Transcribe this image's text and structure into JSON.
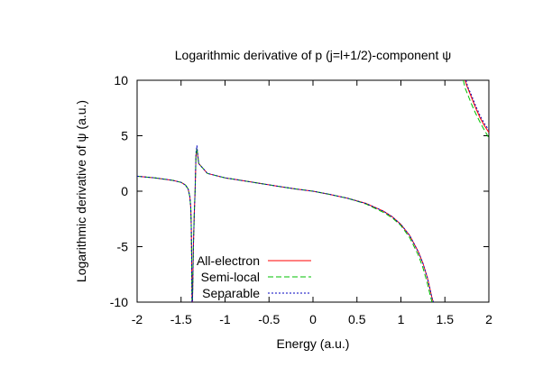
{
  "chart_data": {
    "type": "line",
    "title": "Logarithmic derivative of p (j=l+1/2)-component ψ",
    "xlabel": "Energy (a.u.)",
    "ylabel": "Logarithmic derivative of ψ (a.u.)",
    "xlim": [
      -2,
      2
    ],
    "ylim": [
      -10,
      10
    ],
    "xticks": [
      -2,
      -1.5,
      -1,
      -0.5,
      0,
      0.5,
      1,
      1.5,
      2
    ],
    "xtick_labels": [
      "-2",
      "-1.5",
      "-1",
      "-0.5",
      "0",
      "0.5",
      "1",
      "1.5",
      "2"
    ],
    "yticks": [
      -10,
      -5,
      0,
      5,
      10
    ],
    "ytick_labels": [
      "-10",
      "-5",
      "0",
      "5",
      "10"
    ],
    "grid": false,
    "legend_position": "bottom-left",
    "series": [
      {
        "name": "All-electron",
        "color": "#ff0000",
        "dash": "",
        "x": [
          -2.0,
          -1.8,
          -1.6,
          -1.5,
          -1.45,
          -1.42,
          -1.4,
          -1.39,
          -1.385,
          -1.38,
          -1.375,
          -1.37,
          -1.36,
          -1.35,
          -1.34,
          -1.33,
          -1.32,
          -1.3,
          -1.2,
          -1.0,
          -0.8,
          -0.6,
          -0.4,
          -0.2,
          0.0,
          0.2,
          0.4,
          0.6,
          0.8,
          0.9,
          1.0,
          1.1,
          1.2,
          1.25,
          1.3,
          1.33,
          1.35,
          1.36,
          1.37
        ],
        "y": [
          1.35,
          1.2,
          0.98,
          0.8,
          0.55,
          0.2,
          -0.5,
          -1.5,
          -3.0,
          -6.0,
          -10.0,
          -10.0,
          -5.0,
          -2.0,
          0.0,
          3.2,
          3.8,
          2.5,
          1.6,
          1.2,
          0.95,
          0.7,
          0.45,
          0.2,
          0.0,
          -0.3,
          -0.65,
          -1.1,
          -1.8,
          -2.3,
          -3.0,
          -4.0,
          -5.5,
          -6.5,
          -7.8,
          -8.8,
          -9.5,
          -9.8,
          -10.0
        ],
        "x2": [
          1.73,
          1.75,
          1.8,
          1.85,
          1.9,
          1.95,
          2.0
        ],
        "y2": [
          10.0,
          9.5,
          8.5,
          7.5,
          6.6,
          5.9,
          5.3
        ]
      },
      {
        "name": "Semi-local",
        "color": "#00c000",
        "dash": "6 3",
        "x": [
          -2.0,
          -1.8,
          -1.6,
          -1.5,
          -1.45,
          -1.42,
          -1.4,
          -1.39,
          -1.385,
          -1.38,
          -1.375,
          -1.37,
          -1.36,
          -1.35,
          -1.34,
          -1.33,
          -1.32,
          -1.3,
          -1.2,
          -1.0,
          -0.8,
          -0.6,
          -0.4,
          -0.2,
          0.0,
          0.2,
          0.4,
          0.6,
          0.8,
          0.9,
          1.0,
          1.1,
          1.2,
          1.25,
          1.3,
          1.33,
          1.35,
          1.36
        ],
        "y": [
          1.35,
          1.2,
          0.98,
          0.8,
          0.55,
          0.2,
          -0.5,
          -1.5,
          -3.0,
          -6.0,
          -10.0,
          -10.0,
          -5.0,
          -2.0,
          0.0,
          3.3,
          3.9,
          2.5,
          1.6,
          1.2,
          0.95,
          0.7,
          0.45,
          0.2,
          0.0,
          -0.3,
          -0.65,
          -1.15,
          -1.9,
          -2.4,
          -3.1,
          -4.2,
          -5.8,
          -6.9,
          -8.3,
          -9.3,
          -9.9,
          -10.0
        ],
        "x2": [
          1.71,
          1.73,
          1.8,
          1.85,
          1.9,
          1.95,
          2.0
        ],
        "y2": [
          10.0,
          9.3,
          7.9,
          7.0,
          6.2,
          5.5,
          4.8
        ]
      },
      {
        "name": "Separable",
        "color": "#0000c0",
        "dash": "2 2",
        "x": [
          -2.0,
          -1.8,
          -1.6,
          -1.5,
          -1.45,
          -1.42,
          -1.4,
          -1.39,
          -1.385,
          -1.38,
          -1.375,
          -1.37,
          -1.36,
          -1.35,
          -1.34,
          -1.33,
          -1.32,
          -1.3,
          -1.2,
          -1.0,
          -0.8,
          -0.6,
          -0.4,
          -0.2,
          0.0,
          0.2,
          0.4,
          0.6,
          0.8,
          0.9,
          1.0,
          1.1,
          1.2,
          1.25,
          1.3,
          1.33,
          1.35,
          1.36,
          1.37
        ],
        "y": [
          1.35,
          1.2,
          0.98,
          0.8,
          0.55,
          0.2,
          -0.5,
          -1.5,
          -3.0,
          -6.0,
          -10.0,
          -10.0,
          -5.0,
          -2.0,
          0.0,
          3.5,
          4.1,
          2.5,
          1.6,
          1.2,
          0.95,
          0.7,
          0.45,
          0.2,
          0.0,
          -0.3,
          -0.65,
          -1.1,
          -1.8,
          -2.3,
          -3.0,
          -4.0,
          -5.5,
          -6.5,
          -7.8,
          -8.8,
          -9.5,
          -9.8,
          -10.0
        ],
        "x2": [
          1.74,
          1.76,
          1.8,
          1.85,
          1.9,
          1.95,
          2.0
        ],
        "y2": [
          10.0,
          9.4,
          8.7,
          7.7,
          6.8,
          6.1,
          5.5
        ]
      }
    ]
  }
}
